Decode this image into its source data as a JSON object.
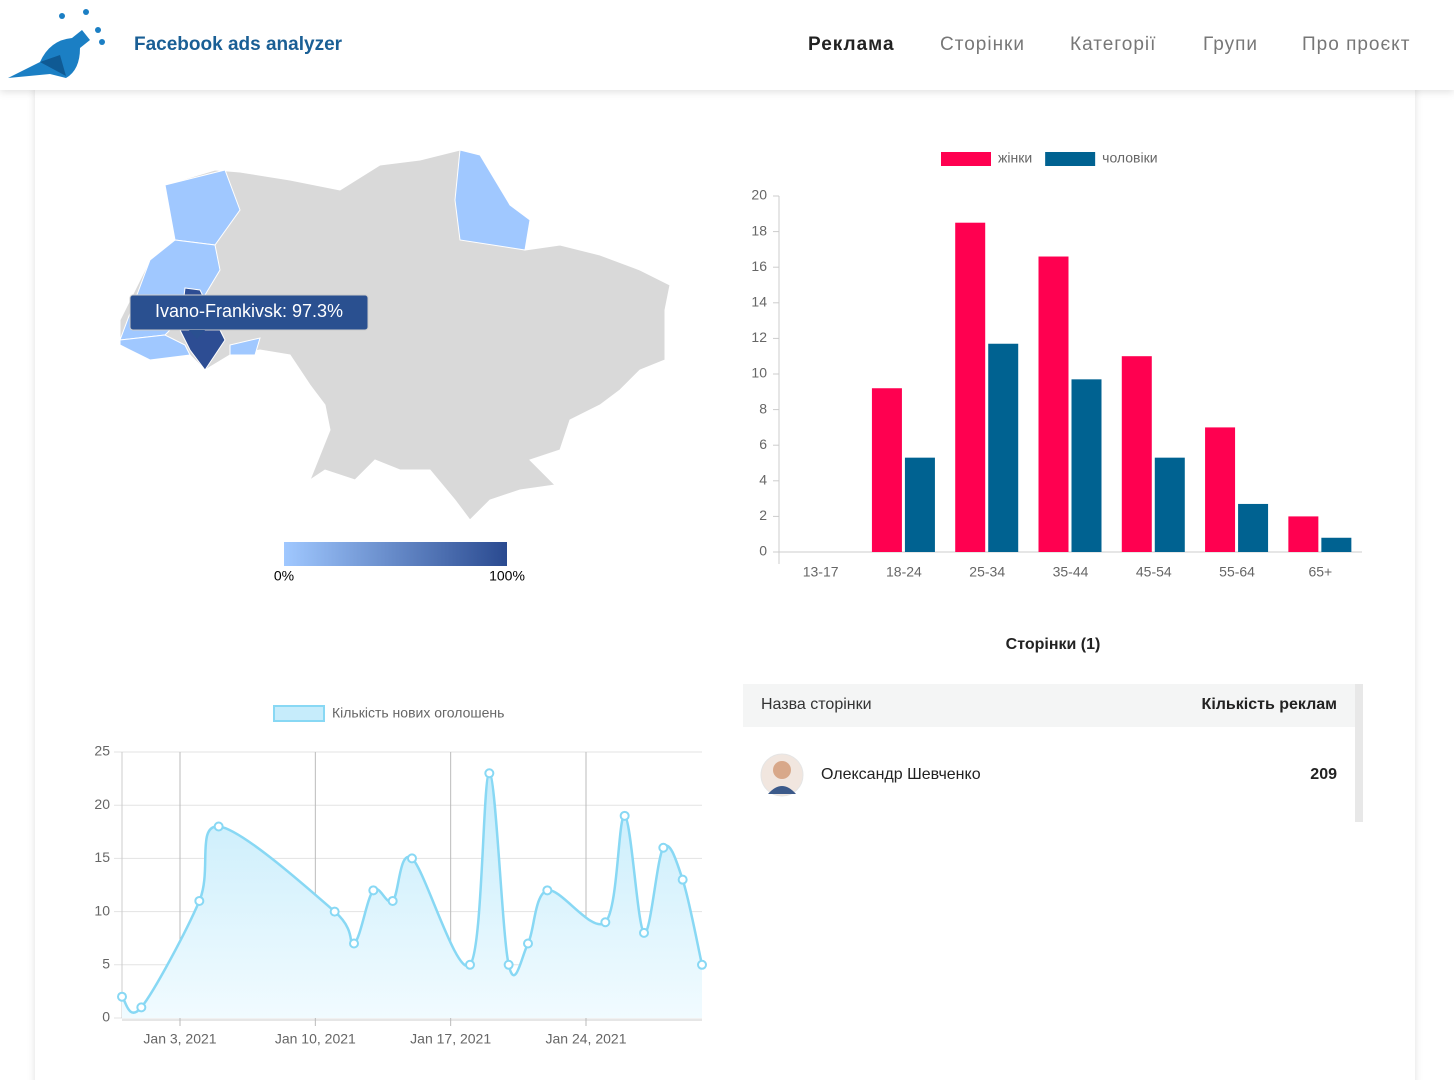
{
  "header": {
    "title": "Facebook ads analyzer",
    "nav": [
      "Реклама",
      "Сторінки",
      "Категорії",
      "Групи",
      "Про проєкт"
    ]
  },
  "map": {
    "tooltip": "Ivano-Frankivsk: 97.3%",
    "value": 97.3,
    "scale_labels": [
      "0%",
      "100%"
    ],
    "scale_colors": [
      "#a0c8ff",
      "#2a4a90"
    ]
  },
  "chart_data": [
    {
      "type": "bar",
      "legend": "top",
      "categories": [
        "13-17",
        "18-24",
        "25-34",
        "35-44",
        "45-54",
        "55-64",
        "65+"
      ],
      "series": [
        {
          "name": "жінки",
          "color": "#ff0050",
          "values": [
            0,
            9.2,
            18.5,
            16.6,
            11,
            7,
            2
          ]
        },
        {
          "name": "чоловіки",
          "color": "#006291",
          "values": [
            0,
            5.3,
            11.7,
            9.7,
            5.3,
            2.7,
            0.8
          ]
        }
      ],
      "ylim": [
        0,
        20
      ],
      "yticks": [
        0,
        2,
        4,
        6,
        8,
        10,
        12,
        14,
        16,
        18,
        20
      ]
    },
    {
      "type": "line",
      "legend": "top",
      "color": "#88d8f4",
      "x": [
        "2020-12-31",
        "2021-01-01",
        "2021-01-04",
        "2021-01-05",
        "2021-01-11",
        "2021-01-12",
        "2021-01-13",
        "2021-01-14",
        "2021-01-15",
        "2021-01-18",
        "2021-01-19",
        "2021-01-20",
        "2021-01-21",
        "2021-01-22",
        "2021-01-25",
        "2021-01-26",
        "2021-01-27",
        "2021-01-28",
        "2021-01-29",
        "2021-01-30"
      ],
      "series": [
        {
          "name": "Кількість нових оголошень",
          "color": "#88d8f4",
          "values": [
            2,
            1,
            11,
            18,
            10,
            7,
            12,
            11,
            15,
            5,
            23,
            5,
            7,
            12,
            9,
            19,
            8,
            16,
            13,
            5
          ]
        }
      ],
      "xlim": [
        "2020-12-31",
        "2021-01-30"
      ],
      "xticks": [
        {
          "value": "2021-01-03",
          "label": "Jan 3, 2021"
        },
        {
          "value": "2021-01-10",
          "label": "Jan 10, 2021"
        },
        {
          "value": "2021-01-17",
          "label": "Jan 17, 2021"
        },
        {
          "value": "2021-01-24",
          "label": "Jan 24, 2021"
        }
      ],
      "ylim": [
        0,
        25
      ],
      "yticks": [
        0,
        5,
        10,
        15,
        20,
        25
      ],
      "grid": true
    }
  ],
  "table": {
    "title": "Сторінки (1)",
    "columns": [
      "Назва сторінки",
      "Кількість реклам"
    ],
    "rows": [
      [
        "Олександр Шевченко",
        "209"
      ]
    ]
  }
}
